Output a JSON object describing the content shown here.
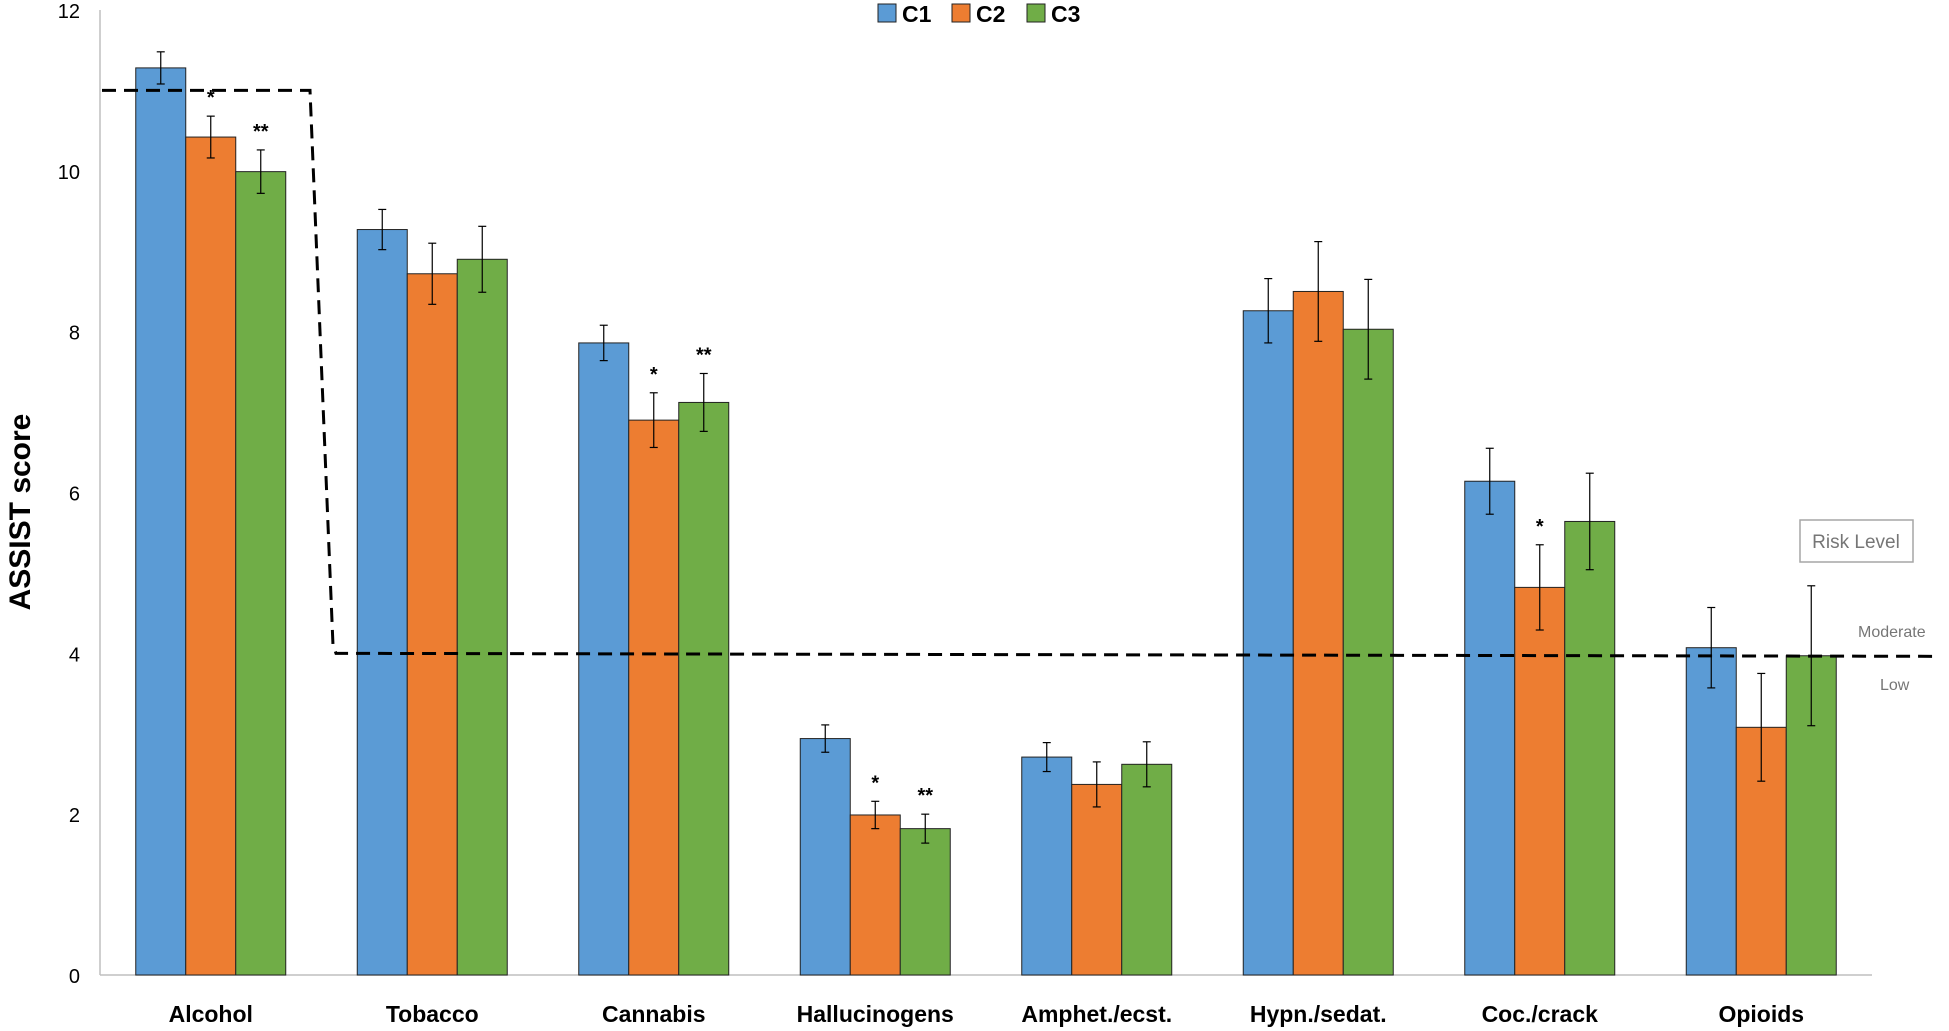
{
  "chart_data": {
    "type": "bar",
    "title": "",
    "xlabel": "",
    "ylabel": "ASSIST score",
    "ylim": [
      0,
      12
    ],
    "yticks": [
      0,
      2,
      4,
      6,
      8,
      10,
      12
    ],
    "grid": false,
    "legend_position": "top-center",
    "categories": [
      "Alcohol",
      "Tobacco",
      "Cannabis",
      "Hallucinogens",
      "Amphet./ecst.",
      "Hypn./sedat.",
      "Coc./crack",
      "Opioids"
    ],
    "series": [
      {
        "name": "C1",
        "color": "#5B9BD5",
        "values": [
          11.28,
          9.27,
          7.86,
          2.94,
          2.71,
          8.26,
          6.14,
          4.07
        ],
        "errors": [
          0.2,
          0.25,
          0.22,
          0.17,
          0.18,
          0.4,
          0.41,
          0.5
        ]
      },
      {
        "name": "C2",
        "color": "#ED7D31",
        "values": [
          10.42,
          8.72,
          6.9,
          1.99,
          2.37,
          8.5,
          4.82,
          3.08
        ],
        "errors": [
          0.26,
          0.38,
          0.34,
          0.17,
          0.28,
          0.62,
          0.53,
          0.67
        ]
      },
      {
        "name": "C3",
        "color": "#70AD47",
        "values": [
          9.99,
          8.9,
          7.12,
          1.82,
          2.62,
          8.03,
          5.64,
          3.97
        ],
        "errors": [
          0.27,
          0.41,
          0.36,
          0.18,
          0.28,
          0.62,
          0.6,
          0.87
        ]
      }
    ],
    "significance": [
      {
        "category": "Alcohol",
        "series": "C2",
        "label": "*"
      },
      {
        "category": "Alcohol",
        "series": "C3",
        "label": "**"
      },
      {
        "category": "Cannabis",
        "series": "C2",
        "label": "*"
      },
      {
        "category": "Cannabis",
        "series": "C3",
        "label": "**"
      },
      {
        "category": "Hallucinogens",
        "series": "C2",
        "label": "*"
      },
      {
        "category": "Hallucinogens",
        "series": "C3",
        "label": "**"
      },
      {
        "category": "Coc./crack",
        "series": "C2",
        "label": "*"
      }
    ],
    "risk_thresholds": {
      "alcohol_moderate": 11,
      "other_substances_moderate": 4
    },
    "risk_legend": {
      "title": "Risk Level",
      "upper_label": "Moderate",
      "lower_label": "Low"
    }
  }
}
